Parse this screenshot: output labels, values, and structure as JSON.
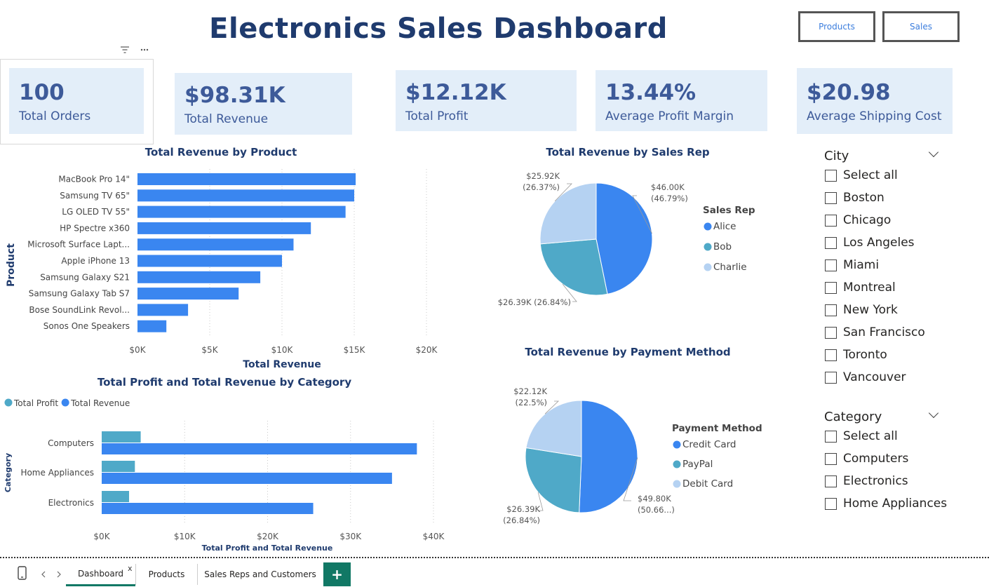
{
  "header": {
    "title": "Electronics Sales Dashboard",
    "nav_products": "Products",
    "nav_sales": "Sales"
  },
  "cards": [
    {
      "value": "100",
      "label": "Total Orders"
    },
    {
      "value": "$98.31K",
      "label": "Total Revenue"
    },
    {
      "value": "$12.12K",
      "label": "Total Profit"
    },
    {
      "value": "13.44%",
      "label": "Average Profit Margin"
    },
    {
      "value": "$20.98",
      "label": "Average Shipping Cost"
    }
  ],
  "visual_header": {
    "filter_icon": "filter-icon",
    "more_icon": "more-options-icon"
  },
  "chart_data": [
    {
      "type": "bar",
      "title": "Total Revenue by Product",
      "xlabel": "Total Revenue",
      "ylabel": "Product",
      "categories": [
        "MacBook Pro 14\"",
        "Samsung TV 65\"",
        "LG OLED TV 55\"",
        "HP Spectre x360",
        "Microsoft Surface Lapt...",
        "Apple iPhone 13",
        "Samsung Galaxy S21",
        "Samsung Galaxy Tab S7",
        "Bose SoundLink Revol...",
        "Sonos One Speakers"
      ],
      "values": [
        15100,
        15000,
        14400,
        12000,
        10800,
        10000,
        8500,
        7000,
        3500,
        2000
      ],
      "xlim": [
        0,
        20000
      ],
      "xticks": [
        "$0K",
        "$5K",
        "$10K",
        "$15K",
        "$20K"
      ],
      "color": "#3a86f0",
      "grid": true
    },
    {
      "type": "bar",
      "title": "Total Profit and Total Revenue by Category",
      "xlabel": "Total Profit and Total Revenue",
      "ylabel": "Category",
      "categories": [
        "Computers",
        "Home Appliances",
        "Electronics"
      ],
      "series": [
        {
          "name": "Total Profit",
          "values": [
            4700,
            4000,
            3300
          ],
          "color": "#4fa9c8"
        },
        {
          "name": "Total Revenue",
          "values": [
            38000,
            35000,
            25500
          ],
          "color": "#3a86f0"
        }
      ],
      "xlim": [
        0,
        40000
      ],
      "xticks": [
        "$0K",
        "$10K",
        "$20K",
        "$30K",
        "$40K"
      ],
      "legend": "top-left",
      "grid": true
    },
    {
      "type": "pie",
      "title": "Total Revenue by Sales Rep",
      "legend_title": "Sales Rep",
      "legend": "right",
      "slices": [
        {
          "name": "Alice",
          "value": 46.0,
          "percent": 46.79,
          "label": "$46.00K",
          "label2": "(46.79%)",
          "color": "#3a86f0"
        },
        {
          "name": "Bob",
          "value": 26.39,
          "percent": 26.84,
          "label": "$26.39K (26.84%)",
          "label2": "",
          "color": "#4fa9c8"
        },
        {
          "name": "Charlie",
          "value": 25.92,
          "percent": 26.37,
          "label": "$25.92K",
          "label2": "(26.37%)",
          "color": "#b5d2f2"
        }
      ]
    },
    {
      "type": "pie",
      "title": "Total Revenue by Payment Method",
      "legend_title": "Payment Method",
      "legend": "right",
      "slices": [
        {
          "name": "Credit Card",
          "value": 49.8,
          "percent": 50.66,
          "label": "$49.80K",
          "label2": "(50.66...)",
          "color": "#3a86f0"
        },
        {
          "name": "PayPal",
          "value": 26.39,
          "percent": 26.84,
          "label": "$26.39K",
          "label2": "(26.84%)",
          "color": "#4fa9c8"
        },
        {
          "name": "Debit Card",
          "value": 22.12,
          "percent": 22.5,
          "label": "$22.12K",
          "label2": "(22.5%)",
          "color": "#b5d2f2"
        }
      ]
    }
  ],
  "slicers": [
    {
      "title": "City",
      "items": [
        "Select all",
        "Boston",
        "Chicago",
        "Los Angeles",
        "Miami",
        "Montreal",
        "New York",
        "San Francisco",
        "Toronto",
        "Vancouver"
      ]
    },
    {
      "title": "Category",
      "items": [
        "Select all",
        "Computers",
        "Electronics",
        "Home Appliances"
      ]
    }
  ],
  "tabs": {
    "items": [
      "Dashboard",
      "Products",
      "Sales Reps and Customers"
    ],
    "active": "Dashboard",
    "close_glyph": "x",
    "add_glyph": "+"
  }
}
